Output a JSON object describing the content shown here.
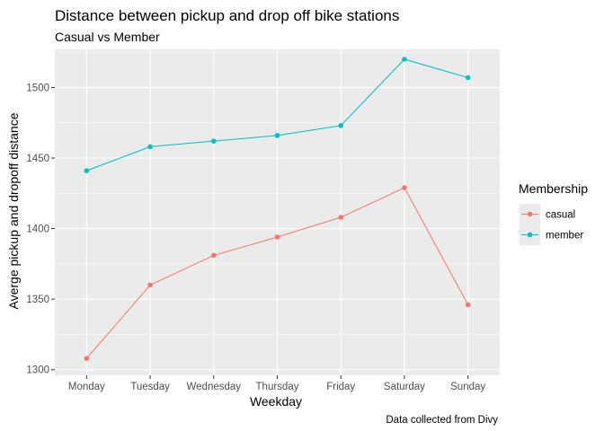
{
  "chart_data": {
    "type": "line",
    "title": "Distance between pickup and drop off bike stations",
    "subtitle": "Casual vs Member",
    "xlabel": "Weekday",
    "ylabel": "Averge pickup and dropoff distance",
    "caption": "Data collected from Divy",
    "categories": [
      "Monday",
      "Tuesday",
      "Wednesday",
      "Thursday",
      "Friday",
      "Saturday",
      "Sunday"
    ],
    "ylim": [
      1296,
      1527
    ],
    "yticks": [
      1300,
      1350,
      1400,
      1450,
      1500
    ],
    "grid": true,
    "legend": {
      "title": "Membership",
      "position": "right"
    },
    "series": [
      {
        "name": "casual",
        "color": "#F8766D",
        "values": [
          1308,
          1360,
          1381,
          1394,
          1408,
          1429,
          1346
        ]
      },
      {
        "name": "member",
        "color": "#00BFC4",
        "values": [
          1441,
          1458,
          1462,
          1466,
          1473,
          1520,
          1507
        ]
      }
    ]
  },
  "style": {
    "panel_background": "#EBEBEB",
    "grid_major": "#FFFFFF",
    "tick_color": "#333333"
  }
}
